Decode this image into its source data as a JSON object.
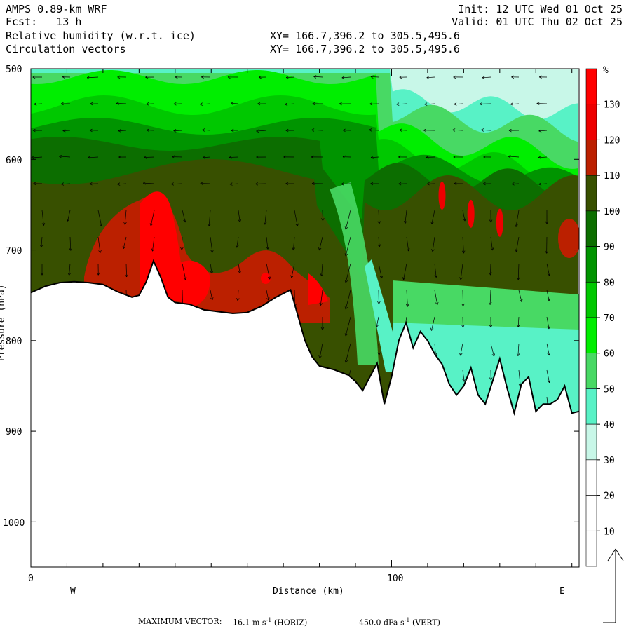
{
  "header": {
    "model": "AMPS 0.89-km WRF",
    "fcst": "Fcst:   13 h",
    "field1": "Relative humidity (w.r.t. ice)",
    "field2": "Circulation vectors",
    "xy1": "XY= 166.7,396.2 to 305.5,495.6",
    "xy2": "XY= 166.7,396.2 to 305.5,495.6",
    "init": "Init: 12 UTC Wed 01 Oct 25",
    "valid": "Valid: 01 UTC Thu 02 Oct 25"
  },
  "footer": {
    "max_label": "MAXIMUM VECTOR:",
    "horiz_value": "16.1 m s",
    "horiz_unit": "(HORIZ)",
    "vert_value": "450.0 dPa s",
    "vert_unit": "(VERT)",
    "exp": "-1"
  },
  "chart_data": {
    "type": "heatmap",
    "title": "Relative humidity (w.r.t. ice)",
    "xlabel": "Distance (km)",
    "ylabel": "Pressure (hPa)",
    "x_ticks": [
      "0",
      "100"
    ],
    "x_end_labels": [
      "W",
      "E"
    ],
    "xlim": [
      0,
      152
    ],
    "ylim": [
      1050,
      500
    ],
    "y_ticks": [
      "500",
      "600",
      "700",
      "800",
      "900",
      "1000"
    ],
    "colorbar": {
      "unit": "%",
      "levels": [
        10,
        20,
        30,
        40,
        50,
        60,
        70,
        80,
        90,
        100,
        110,
        120,
        130
      ],
      "colors": [
        "#ffffff",
        "#ffffff",
        "#ffffff",
        "#c8f7e8",
        "#58f2c6",
        "#48d964",
        "#00ee00",
        "#00c800",
        "#009400",
        "#0c6e00",
        "#385000",
        "#bb2000",
        "#ee0000",
        "#ff0000"
      ]
    },
    "terrain_profile": {
      "distance_km": [
        0,
        4,
        8,
        12,
        16,
        20,
        24,
        28,
        30,
        32,
        34,
        36,
        38,
        40,
        44,
        48,
        52,
        56,
        60,
        64,
        68,
        72,
        76,
        78,
        80,
        82,
        84,
        86,
        88,
        90,
        92,
        94,
        96,
        98,
        100,
        102,
        104,
        106,
        108,
        110,
        112,
        114,
        116,
        118,
        120,
        122,
        124,
        126,
        128,
        130,
        132,
        134,
        136,
        138,
        140,
        142,
        144,
        146,
        148,
        150,
        152
      ],
      "pressure_hpa": [
        747,
        740,
        736,
        735,
        736,
        738,
        746,
        752,
        750,
        735,
        712,
        730,
        752,
        758,
        760,
        766,
        768,
        770,
        769,
        762,
        752,
        744,
        800,
        818,
        828,
        830,
        832,
        835,
        838,
        845,
        855,
        840,
        825,
        870,
        840,
        800,
        780,
        808,
        790,
        800,
        815,
        826,
        848,
        860,
        850,
        830,
        860,
        870,
        845,
        820,
        852,
        880,
        848,
        840,
        878,
        870,
        870,
        865,
        850,
        880,
        878
      ]
    },
    "rh_maxima": [
      {
        "distance_km": 38,
        "pressure_hpa": 655,
        "value": 130
      },
      {
        "distance_km": 65,
        "pressure_hpa": 730,
        "value": 130
      },
      {
        "distance_km": 114,
        "pressure_hpa": 640,
        "value": 120
      },
      {
        "distance_km": 122,
        "pressure_hpa": 660,
        "value": 120
      },
      {
        "distance_km": 130,
        "pressure_hpa": 670,
        "value": 120
      },
      {
        "distance_km": 150,
        "pressure_hpa": 690,
        "value": 120
      }
    ],
    "max_vector": {
      "horiz_ms": 16.1,
      "vert_dPas": 450.0
    }
  }
}
